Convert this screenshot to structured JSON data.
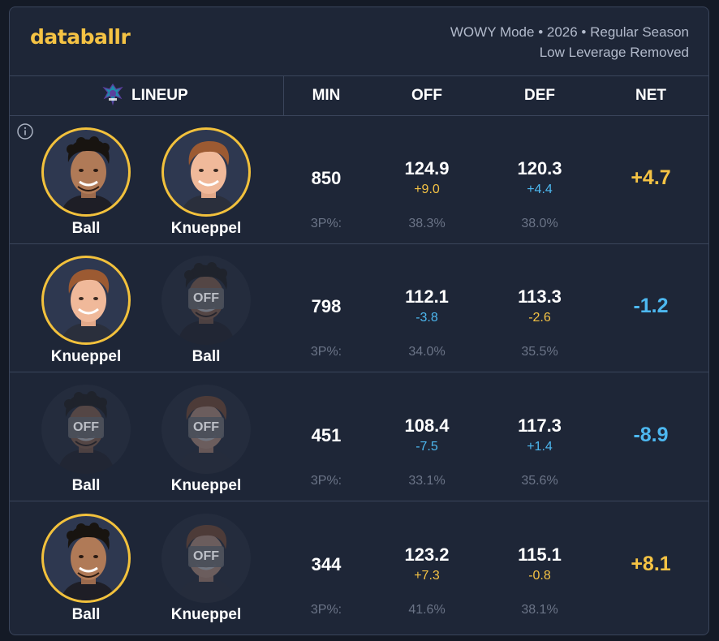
{
  "brand": {
    "logo": "databallr"
  },
  "meta": {
    "line1": "WOWY Mode • 2026 • Regular Season",
    "line2": "Low Leverage Removed"
  },
  "columns": {
    "lineup": "LINEUP",
    "min": "MIN",
    "off": "OFF",
    "def": "DEF",
    "net": "NET"
  },
  "colors": {
    "accent": "#f5c344",
    "positive": "#f5c344",
    "negative": "#4db8f0",
    "off_badge": "#4a4f5a"
  },
  "rows": [
    {
      "players": [
        {
          "name": "Ball",
          "status": "on",
          "badge": ""
        },
        {
          "name": "Knueppel",
          "status": "on",
          "badge": ""
        }
      ],
      "min": "850",
      "off": {
        "value": "124.9",
        "delta": "+9.0",
        "sign": "pos",
        "p3_label": "3P%:",
        "p3": "38.3%"
      },
      "def": {
        "value": "120.3",
        "delta": "+4.4",
        "sign": "neg",
        "p3": "38.0%"
      },
      "net": {
        "value": "+4.7",
        "sign": "pos"
      }
    },
    {
      "players": [
        {
          "name": "Knueppel",
          "status": "on",
          "badge": ""
        },
        {
          "name": "Ball",
          "status": "off",
          "badge": "OFF"
        }
      ],
      "min": "798",
      "off": {
        "value": "112.1",
        "delta": "-3.8",
        "sign": "neg",
        "p3_label": "3P%:",
        "p3": "34.0%"
      },
      "def": {
        "value": "113.3",
        "delta": "-2.6",
        "sign": "pos",
        "p3": "35.5%"
      },
      "net": {
        "value": "-1.2",
        "sign": "neg"
      }
    },
    {
      "players": [
        {
          "name": "Ball",
          "status": "off",
          "badge": "OFF"
        },
        {
          "name": "Knueppel",
          "status": "off",
          "badge": "OFF"
        }
      ],
      "min": "451",
      "off": {
        "value": "108.4",
        "delta": "-7.5",
        "sign": "neg",
        "p3_label": "3P%:",
        "p3": "33.1%"
      },
      "def": {
        "value": "117.3",
        "delta": "+1.4",
        "sign": "neg",
        "p3": "35.6%"
      },
      "net": {
        "value": "-8.9",
        "sign": "neg"
      }
    },
    {
      "players": [
        {
          "name": "Ball",
          "status": "on",
          "badge": ""
        },
        {
          "name": "Knueppel",
          "status": "off",
          "badge": "OFF"
        }
      ],
      "min": "344",
      "off": {
        "value": "123.2",
        "delta": "+7.3",
        "sign": "pos",
        "p3_label": "3P%:",
        "p3": "41.6%"
      },
      "def": {
        "value": "115.1",
        "delta": "-0.8",
        "sign": "pos",
        "p3": "38.1%"
      },
      "net": {
        "value": "+8.1",
        "sign": "pos"
      }
    }
  ]
}
